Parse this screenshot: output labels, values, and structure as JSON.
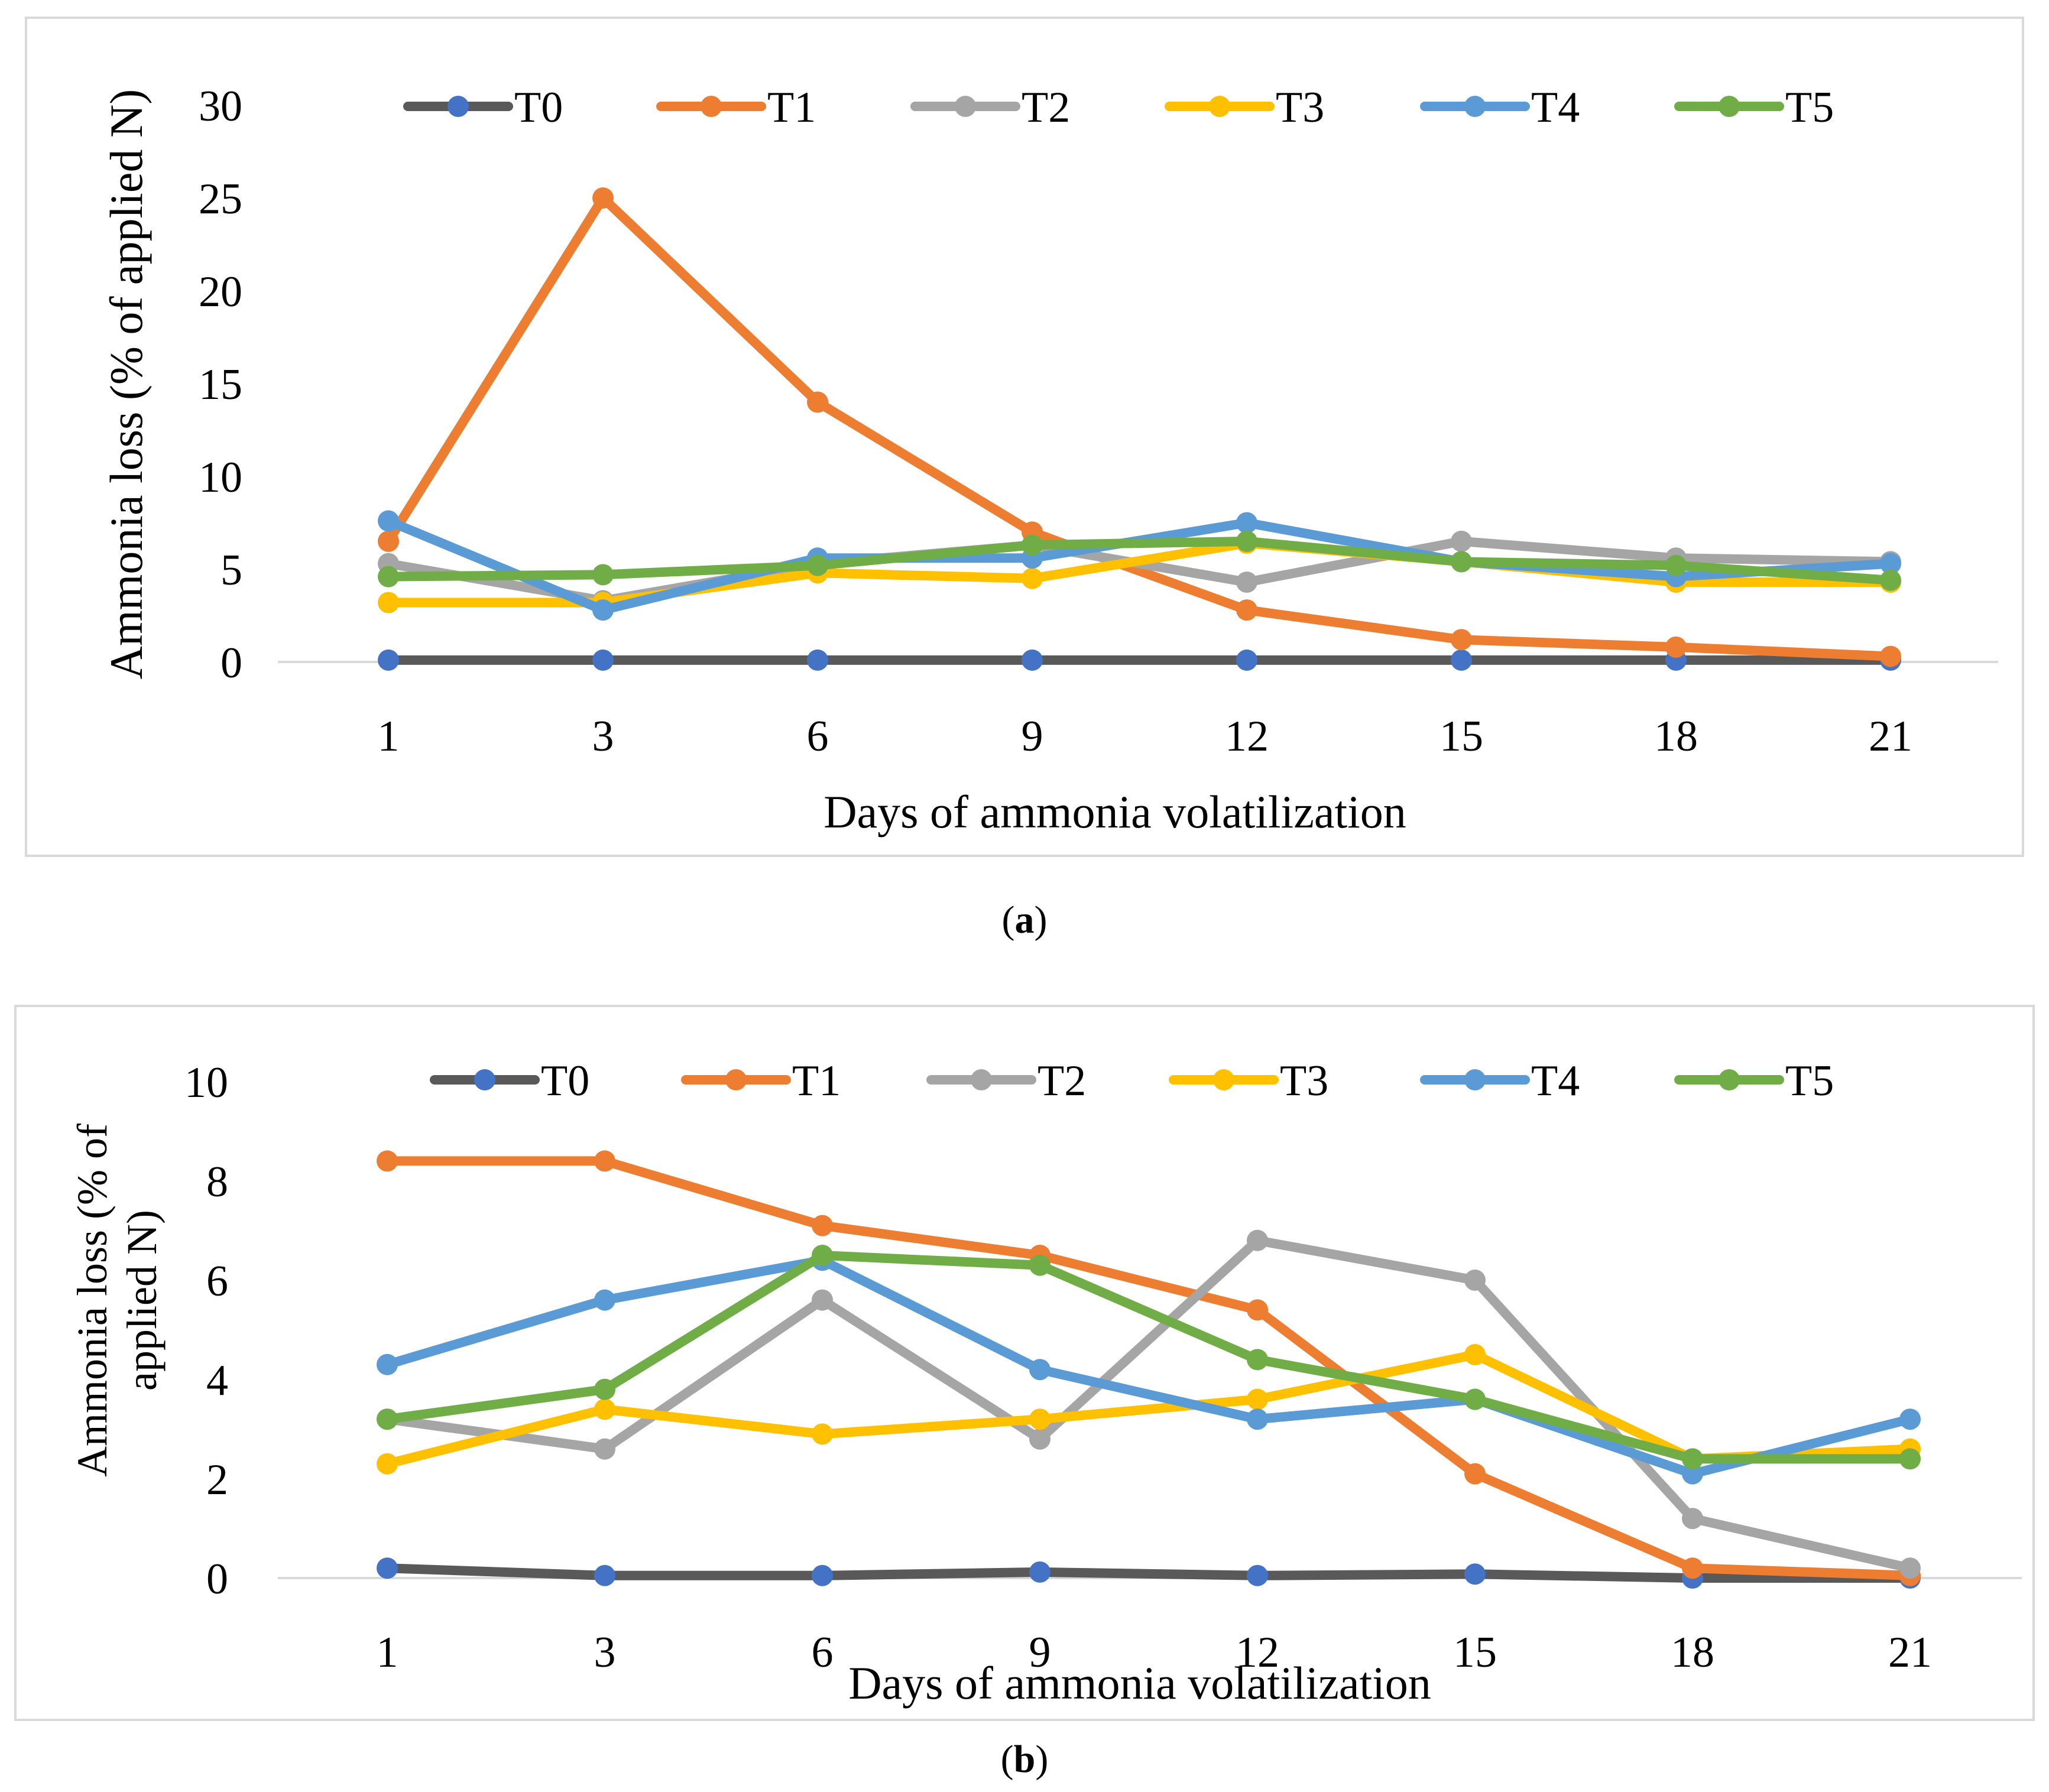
{
  "colors": {
    "T0": "#595959",
    "T0_marker": "#4472c4",
    "T1": "#ed7d31",
    "T2": "#a5a5a5",
    "T3": "#ffc000",
    "T4": "#5b9bd5",
    "T5": "#70ad47",
    "axis_line": "#d9d9d9",
    "panel_border": "#d9d9d9"
  },
  "chart_data": [
    {
      "type": "line",
      "panel_label": "a",
      "title": "",
      "xlabel": "Days of ammonia volatilization",
      "ylabel": "Ammonia loss (% of applied N)",
      "ylim": [
        0,
        30
      ],
      "yticks": [
        0,
        5,
        10,
        15,
        20,
        25,
        30
      ],
      "categories": [
        "1",
        "3",
        "6",
        "9",
        "12",
        "15",
        "18",
        "21"
      ],
      "legend_position": "top",
      "series": [
        {
          "name": "T0",
          "values": [
            0.1,
            0.1,
            0.1,
            0.1,
            0.1,
            0.1,
            0.1,
            0.1
          ]
        },
        {
          "name": "T1",
          "values": [
            6.5,
            25.0,
            14.0,
            7.0,
            2.8,
            1.2,
            0.8,
            0.3
          ]
        },
        {
          "name": "T2",
          "values": [
            5.3,
            3.3,
            5.3,
            6.3,
            4.3,
            6.5,
            5.6,
            5.4
          ]
        },
        {
          "name": "T3",
          "values": [
            3.2,
            3.2,
            4.8,
            4.5,
            6.4,
            5.4,
            4.3,
            4.3
          ]
        },
        {
          "name": "T4",
          "values": [
            7.6,
            2.8,
            5.6,
            5.6,
            7.5,
            5.4,
            4.6,
            5.3
          ]
        },
        {
          "name": "T5",
          "values": [
            4.6,
            4.7,
            5.2,
            6.3,
            6.5,
            5.4,
            5.2,
            4.4
          ]
        }
      ]
    },
    {
      "type": "line",
      "panel_label": "b",
      "title": "",
      "xlabel": "Days of ammonia volatilization",
      "ylabel": "Ammonia loss (% of applied N)",
      "ylim": [
        0,
        10
      ],
      "yticks": [
        0,
        2,
        4,
        6,
        8,
        10
      ],
      "categories": [
        "1",
        "3",
        "6",
        "9",
        "12",
        "15",
        "18",
        "21"
      ],
      "legend_position": "top",
      "series": [
        {
          "name": "T0",
          "values": [
            0.2,
            0.05,
            0.05,
            0.12,
            0.05,
            0.08,
            0.0,
            0.0
          ]
        },
        {
          "name": "T1",
          "values": [
            8.4,
            8.4,
            7.1,
            6.5,
            5.4,
            2.1,
            0.2,
            0.05
          ]
        },
        {
          "name": "T2",
          "values": [
            3.2,
            2.6,
            5.6,
            2.8,
            6.8,
            6.0,
            1.2,
            0.2
          ]
        },
        {
          "name": "T3",
          "values": [
            2.3,
            3.4,
            2.9,
            3.2,
            3.6,
            4.5,
            2.4,
            2.6
          ]
        },
        {
          "name": "T4",
          "values": [
            4.3,
            5.6,
            6.4,
            4.2,
            3.2,
            3.6,
            2.1,
            3.2
          ]
        },
        {
          "name": "T5",
          "values": [
            3.2,
            3.8,
            6.5,
            6.3,
            4.4,
            3.6,
            2.4,
            2.4
          ]
        }
      ]
    }
  ]
}
